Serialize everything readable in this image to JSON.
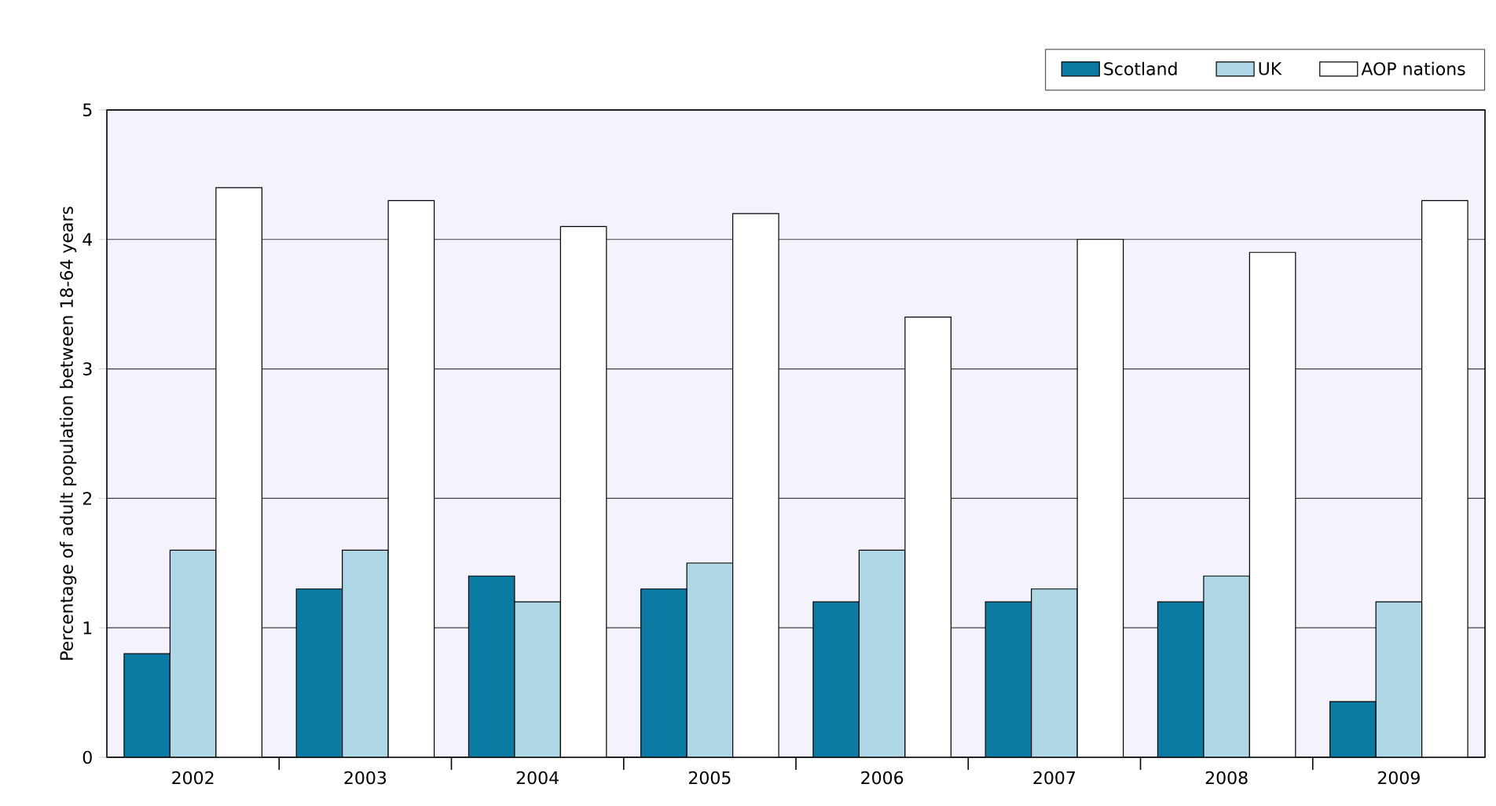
{
  "chart_data": {
    "type": "bar",
    "ylabel": "Percentage of adult population between 18-64 years",
    "categories": [
      "2002",
      "2003",
      "2004",
      "2005",
      "2006",
      "2007",
      "2008",
      "2009"
    ],
    "series": [
      {
        "name": "Scotland",
        "color": "#0a7ca3",
        "values": [
          0.8,
          1.3,
          1.4,
          1.3,
          1.2,
          1.2,
          1.2,
          0.43
        ]
      },
      {
        "name": "UK",
        "color": "#aed8e6",
        "values": [
          1.6,
          1.6,
          1.2,
          1.5,
          1.6,
          1.3,
          1.4,
          1.2
        ]
      },
      {
        "name": "AOP nations",
        "color": "#ffffff",
        "values": [
          4.4,
          4.3,
          4.1,
          4.2,
          3.4,
          4.0,
          3.9,
          4.3
        ]
      }
    ],
    "ylim": [
      0,
      5
    ],
    "yticks": [
      0,
      1,
      2,
      3,
      4,
      5
    ],
    "grid": "y",
    "legend": "top right"
  }
}
